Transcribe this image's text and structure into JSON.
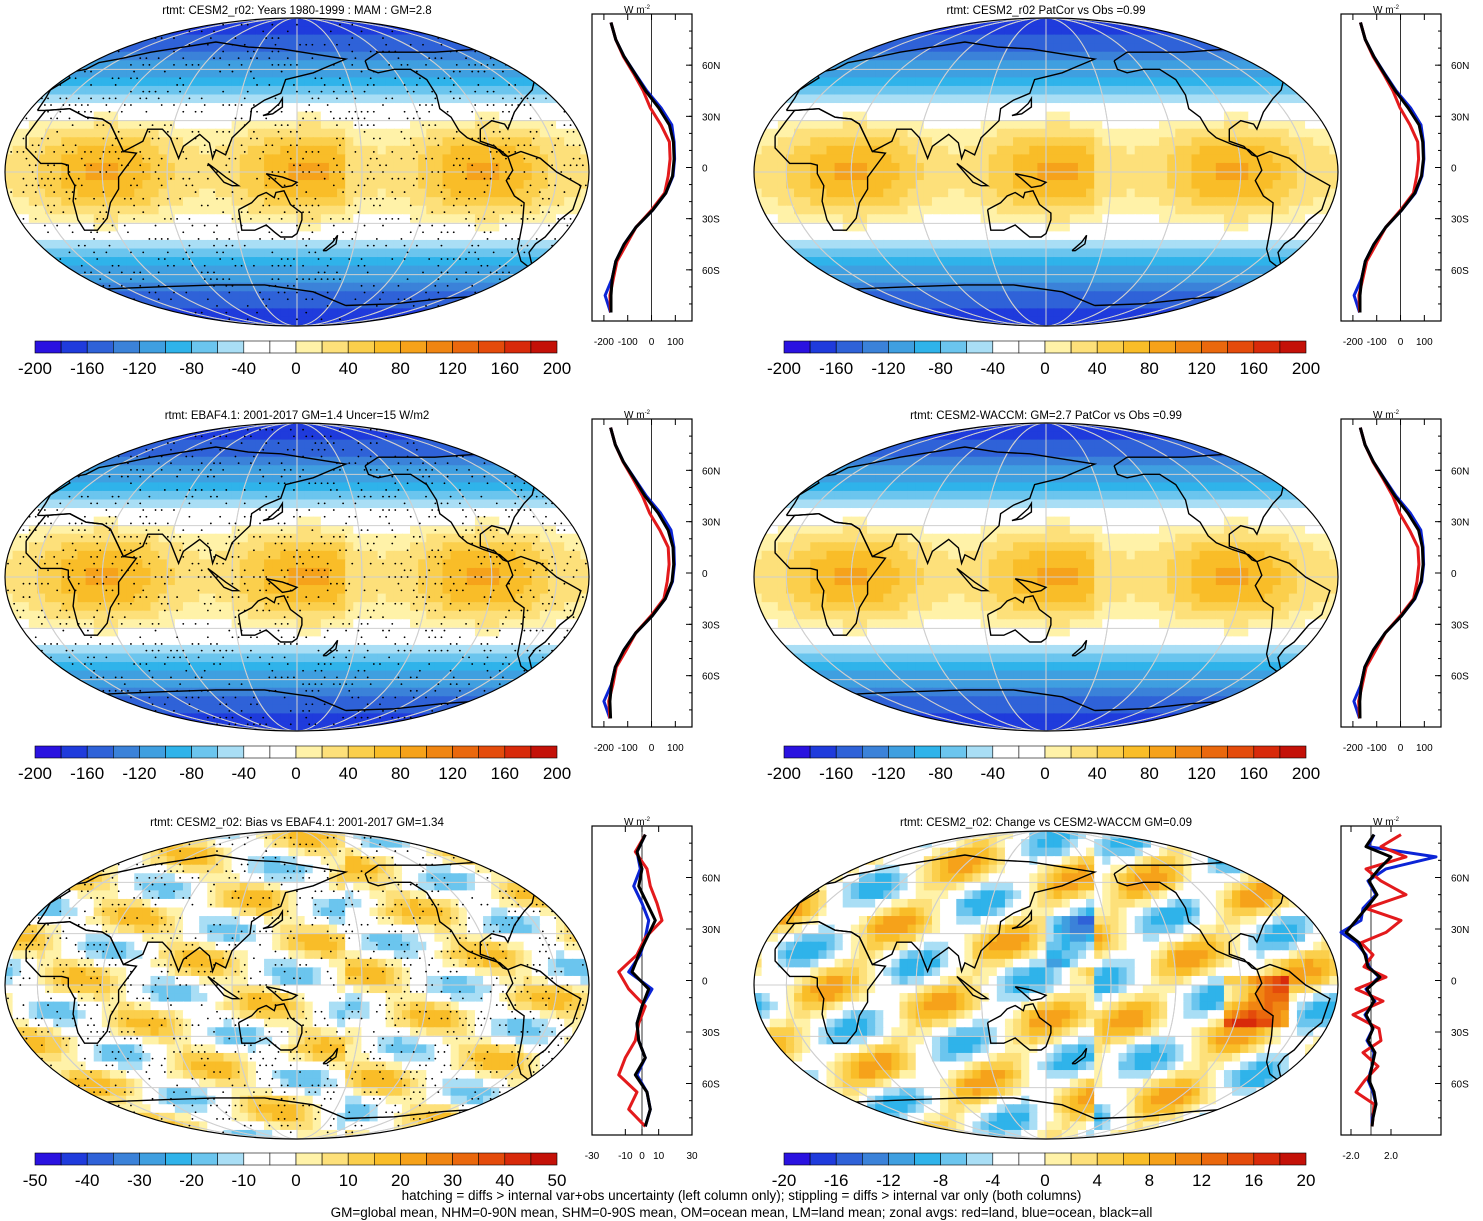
{
  "figure": {
    "footnote_lines": [
      "hatching = diffs > internal var+obs uncertainty (left column only); stippling = diffs > internal var only (both columns)",
      "GM=global mean, NHM=0-90N mean, SHM=0-90S mean, OM=ocean mean, LM=land mean; zonal avgs: red=land, blue=ocean, black=all"
    ]
  },
  "colors": {
    "land": "#e31a1c",
    "ocean": "#0b24d6",
    "all": "#000000",
    "palette": [
      "#2a12e0",
      "#1f3bdc",
      "#2f62d8",
      "#3b82d9",
      "#3f9fe0",
      "#2fb3ea",
      "#6bc5ee",
      "#a9def5",
      "#ffffff",
      "#ffffff",
      "#fff2a8",
      "#fde07a",
      "#fbcf4c",
      "#f9bd28",
      "#f6a21a",
      "#f08512",
      "#ea680d",
      "#e44b0b",
      "#d82a0a",
      "#c41108"
    ]
  },
  "chart_data": [
    {
      "type": "heatmap",
      "title": "rtmt: CESM2_r02: Years 1980-1999 : MAM : GM=2.8",
      "map_kind": "mean",
      "stipple": true,
      "colorbar": {
        "ticks": [
          "-200",
          "-160",
          "-120",
          "-80",
          "-40",
          "0",
          "40",
          "80",
          "120",
          "160",
          "200"
        ],
        "range": [
          -200,
          200
        ]
      },
      "zonal": {
        "unit_label": "W m",
        "unit_sup": "-2",
        "xticks": [
          "-200",
          "-100",
          "0",
          "100"
        ],
        "xlim": [
          -250,
          170
        ],
        "yticks": [
          "60N",
          "30N",
          "0",
          "30S",
          "60S"
        ],
        "lat": [
          85,
          75,
          65,
          55,
          45,
          35,
          25,
          15,
          5,
          -5,
          -15,
          -25,
          -35,
          -45,
          -55,
          -65,
          -75,
          -85
        ],
        "all": [
          -170,
          -150,
          -115,
          -70,
          -25,
          30,
          75,
          92,
          95,
          88,
          60,
          5,
          -65,
          -115,
          -150,
          -165,
          -170,
          -170
        ],
        "ocean": [
          -170,
          -150,
          -115,
          -68,
          -20,
          40,
          85,
          95,
          97,
          90,
          60,
          5,
          -65,
          -115,
          -150,
          -165,
          -195,
          -172
        ],
        "land": [
          -170,
          -150,
          -118,
          -75,
          -35,
          -5,
          40,
          75,
          78,
          70,
          55,
          0,
          -65,
          -105,
          -145,
          -160,
          -175,
          -172
        ]
      }
    },
    {
      "type": "heatmap",
      "title": "rtmt: CESM2_r02 PatCor vs Obs =0.99",
      "map_kind": "mean",
      "stipple": false,
      "colorbar": {
        "ticks": [
          "-200",
          "-160",
          "-120",
          "-80",
          "-40",
          "0",
          "40",
          "80",
          "120",
          "160",
          "200"
        ],
        "range": [
          -200,
          200
        ]
      },
      "zonal": {
        "unit_label": "W m",
        "unit_sup": "-2",
        "xticks": [
          "-200",
          "-100",
          "0",
          "100"
        ],
        "xlim": [
          -250,
          170
        ],
        "yticks": [
          "60N",
          "30N",
          "0",
          "30S",
          "60S"
        ],
        "lat": [
          85,
          75,
          65,
          55,
          45,
          35,
          25,
          15,
          5,
          -5,
          -15,
          -25,
          -35,
          -45,
          -55,
          -65,
          -75,
          -85
        ],
        "all": [
          -168,
          -148,
          -112,
          -68,
          -22,
          32,
          78,
          93,
          96,
          88,
          60,
          5,
          -62,
          -112,
          -148,
          -163,
          -170,
          -170
        ],
        "ocean": [
          -168,
          -148,
          -112,
          -66,
          -18,
          42,
          86,
          96,
          98,
          90,
          62,
          5,
          -62,
          -112,
          -148,
          -163,
          -195,
          -172
        ],
        "land": [
          -168,
          -148,
          -115,
          -72,
          -32,
          -2,
          40,
          72,
          76,
          68,
          54,
          0,
          -62,
          -102,
          -142,
          -158,
          -175,
          -172
        ]
      }
    },
    {
      "type": "heatmap",
      "title": "rtmt: EBAF4.1: 2001-2017 GM=1.4 Uncer=15 W/m2",
      "map_kind": "mean",
      "stipple": true,
      "colorbar": {
        "ticks": [
          "-200",
          "-160",
          "-120",
          "-80",
          "-40",
          "0",
          "40",
          "80",
          "120",
          "160",
          "200"
        ],
        "range": [
          -200,
          200
        ]
      },
      "zonal": {
        "unit_label": "W m",
        "unit_sup": "-2",
        "xticks": [
          "-200",
          "-100",
          "0",
          "100"
        ],
        "xlim": [
          -250,
          170
        ],
        "yticks": [
          "60N",
          "30N",
          "0",
          "30S",
          "60S"
        ],
        "lat": [
          85,
          75,
          65,
          55,
          45,
          35,
          25,
          15,
          5,
          -5,
          -15,
          -25,
          -35,
          -45,
          -55,
          -65,
          -75,
          -85
        ],
        "all": [
          -172,
          -152,
          -118,
          -72,
          -28,
          28,
          70,
          90,
          93,
          86,
          58,
          3,
          -66,
          -116,
          -152,
          -168,
          -175,
          -172
        ],
        "ocean": [
          -172,
          -152,
          -118,
          -70,
          -22,
          38,
          82,
          94,
          96,
          88,
          58,
          3,
          -66,
          -116,
          -152,
          -168,
          -200,
          -175
        ],
        "land": [
          -172,
          -152,
          -120,
          -78,
          -38,
          -8,
          35,
          70,
          74,
          66,
          52,
          -2,
          -66,
          -106,
          -148,
          -162,
          -180,
          -175
        ]
      }
    },
    {
      "type": "heatmap",
      "title": "rtmt: CESM2-WACCM: GM=2.7 PatCor vs Obs =0.99",
      "map_kind": "mean",
      "stipple": false,
      "colorbar": {
        "ticks": [
          "-200",
          "-160",
          "-120",
          "-80",
          "-40",
          "0",
          "40",
          "80",
          "120",
          "160",
          "200"
        ],
        "range": [
          -200,
          200
        ]
      },
      "zonal": {
        "unit_label": "W m",
        "unit_sup": "-2",
        "xticks": [
          "-200",
          "-100",
          "0",
          "100"
        ],
        "xlim": [
          -250,
          170
        ],
        "yticks": [
          "60N",
          "30N",
          "0",
          "30S",
          "60S"
        ],
        "lat": [
          85,
          75,
          65,
          55,
          45,
          35,
          25,
          15,
          5,
          -5,
          -15,
          -25,
          -35,
          -45,
          -55,
          -65,
          -75,
          -85
        ],
        "all": [
          -169,
          -149,
          -114,
          -69,
          -24,
          31,
          76,
          92,
          95,
          87,
          59,
          4,
          -64,
          -114,
          -150,
          -165,
          -171,
          -170
        ],
        "ocean": [
          -169,
          -149,
          -114,
          -67,
          -19,
          41,
          85,
          95,
          97,
          89,
          61,
          4,
          -64,
          -114,
          -150,
          -165,
          -196,
          -172
        ],
        "land": [
          -169,
          -149,
          -116,
          -73,
          -33,
          -4,
          38,
          73,
          77,
          69,
          55,
          -1,
          -64,
          -104,
          -144,
          -160,
          -176,
          -172
        ]
      }
    },
    {
      "type": "heatmap",
      "title": "rtmt: CESM2_r02: Bias vs EBAF4.1: 2001-2017 GM=1.34",
      "map_kind": "bias",
      "stipple": true,
      "colorbar": {
        "ticks": [
          "-50",
          "-40",
          "-30",
          "-20",
          "-10",
          "0",
          "10",
          "20",
          "30",
          "40",
          "50"
        ],
        "range": [
          -50,
          50
        ]
      },
      "zonal": {
        "unit_label": "W m",
        "unit_sup": "-2",
        "xticks": [
          "-30",
          "-10",
          "0",
          "10",
          "30"
        ],
        "xlim": [
          -30,
          30
        ],
        "yticks": [
          "60N",
          "30N",
          "0",
          "30S",
          "60S"
        ],
        "lat": [
          85,
          75,
          65,
          55,
          45,
          35,
          25,
          15,
          5,
          -5,
          -15,
          -25,
          -35,
          -45,
          -55,
          -65,
          -75,
          -85
        ],
        "all": [
          2,
          -3,
          0,
          -2,
          3,
          8,
          3,
          -2,
          -6,
          4,
          0,
          -3,
          -2,
          2,
          -4,
          3,
          5,
          2
        ],
        "ocean": [
          2,
          -3,
          -1,
          -5,
          0,
          4,
          2,
          -1,
          -8,
          6,
          0,
          -3,
          -2,
          2,
          -3,
          3,
          5,
          2
        ],
        "land": [
          2,
          -4,
          3,
          5,
          9,
          12,
          2,
          -3,
          -14,
          -8,
          2,
          -2,
          -4,
          -10,
          -14,
          -3,
          -8,
          2
        ]
      }
    },
    {
      "type": "heatmap",
      "title": "rtmt: CESM2_r02: Change vs CESM2-WACCM GM=0.09",
      "map_kind": "change",
      "stipple": false,
      "colorbar": {
        "ticks": [
          "-20",
          "-16",
          "-12",
          "-8",
          "-4",
          "0",
          "4",
          "8",
          "12",
          "16",
          "20"
        ],
        "range": [
          -20,
          20
        ]
      },
      "zonal": {
        "unit_label": "W m",
        "unit_sup": "-2",
        "xticks": [
          "-2.0",
          "2.0"
        ],
        "xlim": [
          -3,
          7
        ],
        "yticks": [
          "60N",
          "30N",
          "0",
          "30S",
          "60S"
        ],
        "lat": [
          85,
          78,
          72,
          65,
          58,
          50,
          42,
          35,
          28,
          22,
          15,
          8,
          2,
          -5,
          -12,
          -20,
          -28,
          -35,
          -42,
          -50,
          -58,
          -65,
          -72,
          -80,
          -85
        ],
        "all": [
          0.3,
          -0.5,
          2.0,
          0.8,
          -0.2,
          0.6,
          -0.5,
          -1.5,
          -2.5,
          -1.2,
          -0.6,
          -0.3,
          0.9,
          -0.4,
          0.3,
          -0.5,
          0.2,
          -0.3,
          0.4,
          0.1,
          -0.2,
          0.3,
          0.5,
          0.2,
          0.1
        ],
        "ocean": [
          0.3,
          -0.3,
          6.5,
          1.5,
          -0.3,
          0.5,
          -0.8,
          -1.0,
          -3.0,
          -1.5,
          -0.5,
          -0.2,
          0.8,
          -0.5,
          0.4,
          -0.6,
          0.2,
          -0.4,
          0.3,
          0.1,
          -0.3,
          0.2,
          0.5,
          0.1,
          0.1
        ],
        "land": [
          3.0,
          1.0,
          3.5,
          -0.5,
          1.0,
          3.5,
          -0.5,
          3.0,
          1.5,
          -1.0,
          0.2,
          -0.7,
          1.5,
          -1.5,
          1.2,
          -1.8,
          0.8,
          1.0,
          -0.8,
          0.7,
          -0.6,
          -1.5,
          0.3,
          0.2,
          0.1
        ]
      }
    }
  ]
}
